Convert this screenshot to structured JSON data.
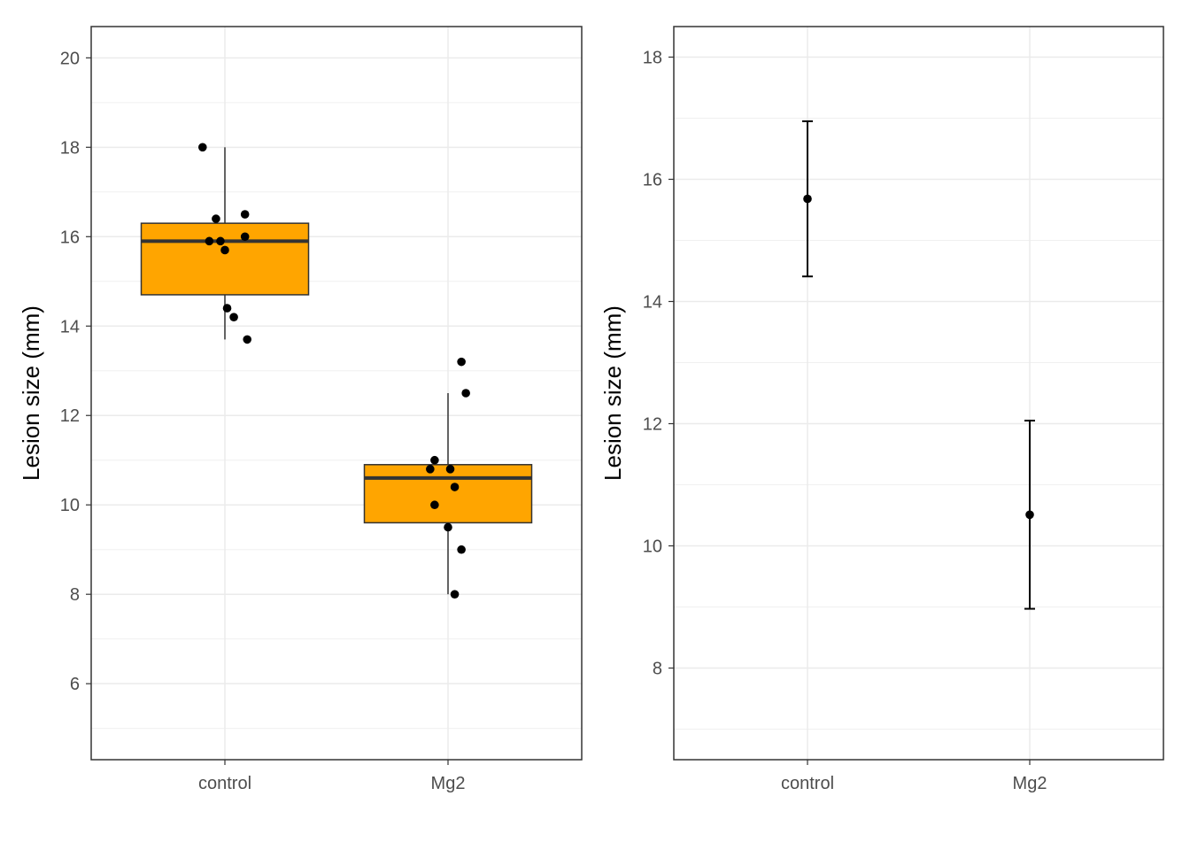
{
  "chart_data": [
    {
      "type": "box",
      "ylabel": "Lesion size (mm)",
      "xlabel": "",
      "ylim": [
        4.3,
        20.7
      ],
      "yticks": [
        6,
        8,
        10,
        12,
        14,
        16,
        18,
        20
      ],
      "grid": true,
      "box_color": "#FFA500",
      "categories": [
        "control",
        "Mg2"
      ],
      "boxes": [
        {
          "category": "control",
          "q1": 14.7,
          "median": 15.9,
          "q3": 16.3,
          "whisker_low": 13.7,
          "whisker_high": 18.0
        },
        {
          "category": "Mg2",
          "q1": 9.6,
          "median": 10.6,
          "q3": 10.9,
          "whisker_low": 8.0,
          "whisker_high": 12.5
        }
      ],
      "points": [
        {
          "category": "control",
          "jitter": -0.1,
          "y": 18.0
        },
        {
          "category": "control",
          "jitter": -0.04,
          "y": 16.4
        },
        {
          "category": "control",
          "jitter": 0.09,
          "y": 16.5
        },
        {
          "category": "control",
          "jitter": -0.07,
          "y": 15.9
        },
        {
          "category": "control",
          "jitter": -0.02,
          "y": 15.9
        },
        {
          "category": "control",
          "jitter": 0.09,
          "y": 16.0
        },
        {
          "category": "control",
          "jitter": 0.0,
          "y": 15.7
        },
        {
          "category": "control",
          "jitter": 0.01,
          "y": 14.4
        },
        {
          "category": "control",
          "jitter": 0.04,
          "y": 14.2
        },
        {
          "category": "control",
          "jitter": 0.1,
          "y": 13.7
        },
        {
          "category": "Mg2",
          "jitter": 0.06,
          "y": 13.2
        },
        {
          "category": "Mg2",
          "jitter": 0.08,
          "y": 12.5
        },
        {
          "category": "Mg2",
          "jitter": -0.06,
          "y": 11.0
        },
        {
          "category": "Mg2",
          "jitter": -0.08,
          "y": 10.8
        },
        {
          "category": "Mg2",
          "jitter": 0.01,
          "y": 10.8
        },
        {
          "category": "Mg2",
          "jitter": 0.03,
          "y": 10.4
        },
        {
          "category": "Mg2",
          "jitter": -0.06,
          "y": 10.0
        },
        {
          "category": "Mg2",
          "jitter": 0.0,
          "y": 9.5
        },
        {
          "category": "Mg2",
          "jitter": 0.06,
          "y": 9.0
        },
        {
          "category": "Mg2",
          "jitter": 0.03,
          "y": 8.0
        }
      ]
    },
    {
      "type": "errorbar",
      "ylabel": "Lesion size (mm)",
      "xlabel": "",
      "ylim": [
        6.5,
        18.5
      ],
      "yticks": [
        8,
        10,
        12,
        14,
        16,
        18
      ],
      "grid": true,
      "categories": [
        "control",
        "Mg2"
      ],
      "series": [
        {
          "category": "control",
          "mean": 15.68,
          "lower": 14.41,
          "upper": 16.95
        },
        {
          "category": "Mg2",
          "mean": 10.51,
          "lower": 8.97,
          "upper": 12.05
        }
      ]
    }
  ]
}
